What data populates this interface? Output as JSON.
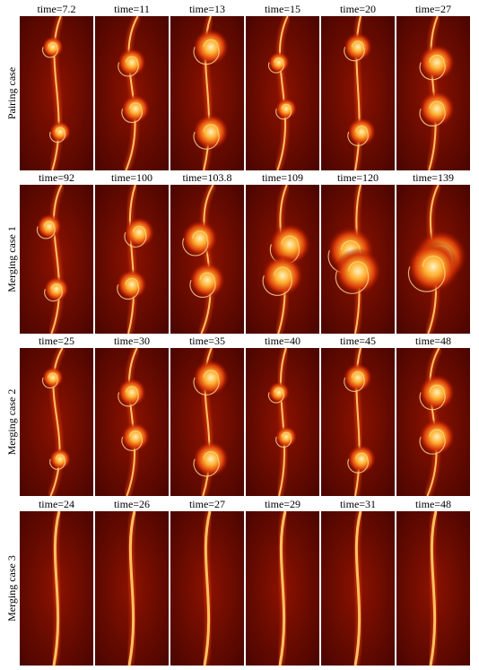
{
  "rows": [
    {
      "label": "Pairing case",
      "panels": [
        "time=7.2",
        "time=11",
        "time=13",
        "time=15",
        "time=20",
        "time=27"
      ]
    },
    {
      "label": "Merging case 1",
      "panels": [
        "time=92",
        "time=100",
        "time=103.8",
        "time=109",
        "time=120",
        "time=139"
      ]
    },
    {
      "label": "Merging case 2",
      "panels": [
        "time=25",
        "time=30",
        "time=35",
        "time=40",
        "time=45",
        "time=48"
      ]
    },
    {
      "label": "Merging case 3",
      "panels": [
        "time=24",
        "time=26",
        "time=27",
        "time=29",
        "time=31",
        "time=48"
      ]
    }
  ]
}
